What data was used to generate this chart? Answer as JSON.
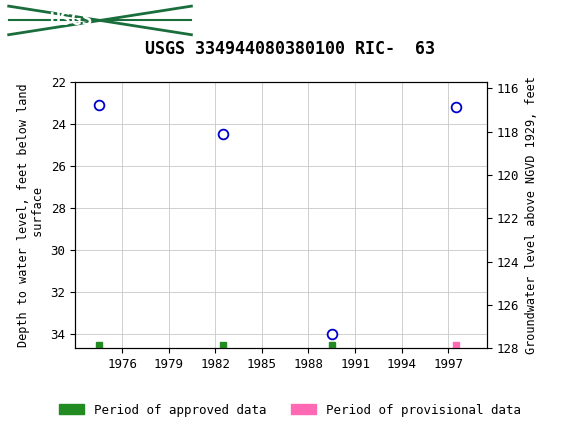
{
  "title": "USGS 334944080380100 RIC-  63",
  "ylabel_left": "Depth to water level, feet below land\n surface",
  "ylabel_right": "Groundwater level above NGVD 1929, feet",
  "header_color": "#1a6e3c",
  "ylim_left": [
    22,
    34.7
  ],
  "ylim_right": [
    128,
    115.7
  ],
  "xlim": [
    1973,
    1999.5
  ],
  "yticks_left": [
    22,
    24,
    26,
    28,
    30,
    32,
    34
  ],
  "yticks_right": [
    128,
    126,
    124,
    122,
    120,
    118,
    116
  ],
  "xticks": [
    1976,
    1979,
    1982,
    1985,
    1988,
    1991,
    1994,
    1997
  ],
  "data_points": [
    {
      "x": 1974.5,
      "y_left": 23.1
    },
    {
      "x": 1982.5,
      "y_left": 24.5
    },
    {
      "x": 1989.5,
      "y_left": 34.0
    },
    {
      "x": 1997.5,
      "y_left": 23.2
    }
  ],
  "green_squares": [
    {
      "x": 1974.5
    },
    {
      "x": 1982.5
    },
    {
      "x": 1989.5
    }
  ],
  "pink_squares": [
    {
      "x": 1997.5
    }
  ],
  "square_y": 34.55,
  "circle_color": "#0000cc",
  "circle_facecolor": "white",
  "green_color": "#228B22",
  "pink_color": "#FF69B4",
  "grid_color": "#c8c8c8",
  "legend_approved": "Period of approved data",
  "legend_provisional": "Period of provisional data",
  "bg_color": "#ffffff",
  "title_fontsize": 12,
  "axis_label_fontsize": 8.5,
  "tick_fontsize": 9,
  "legend_fontsize": 9
}
